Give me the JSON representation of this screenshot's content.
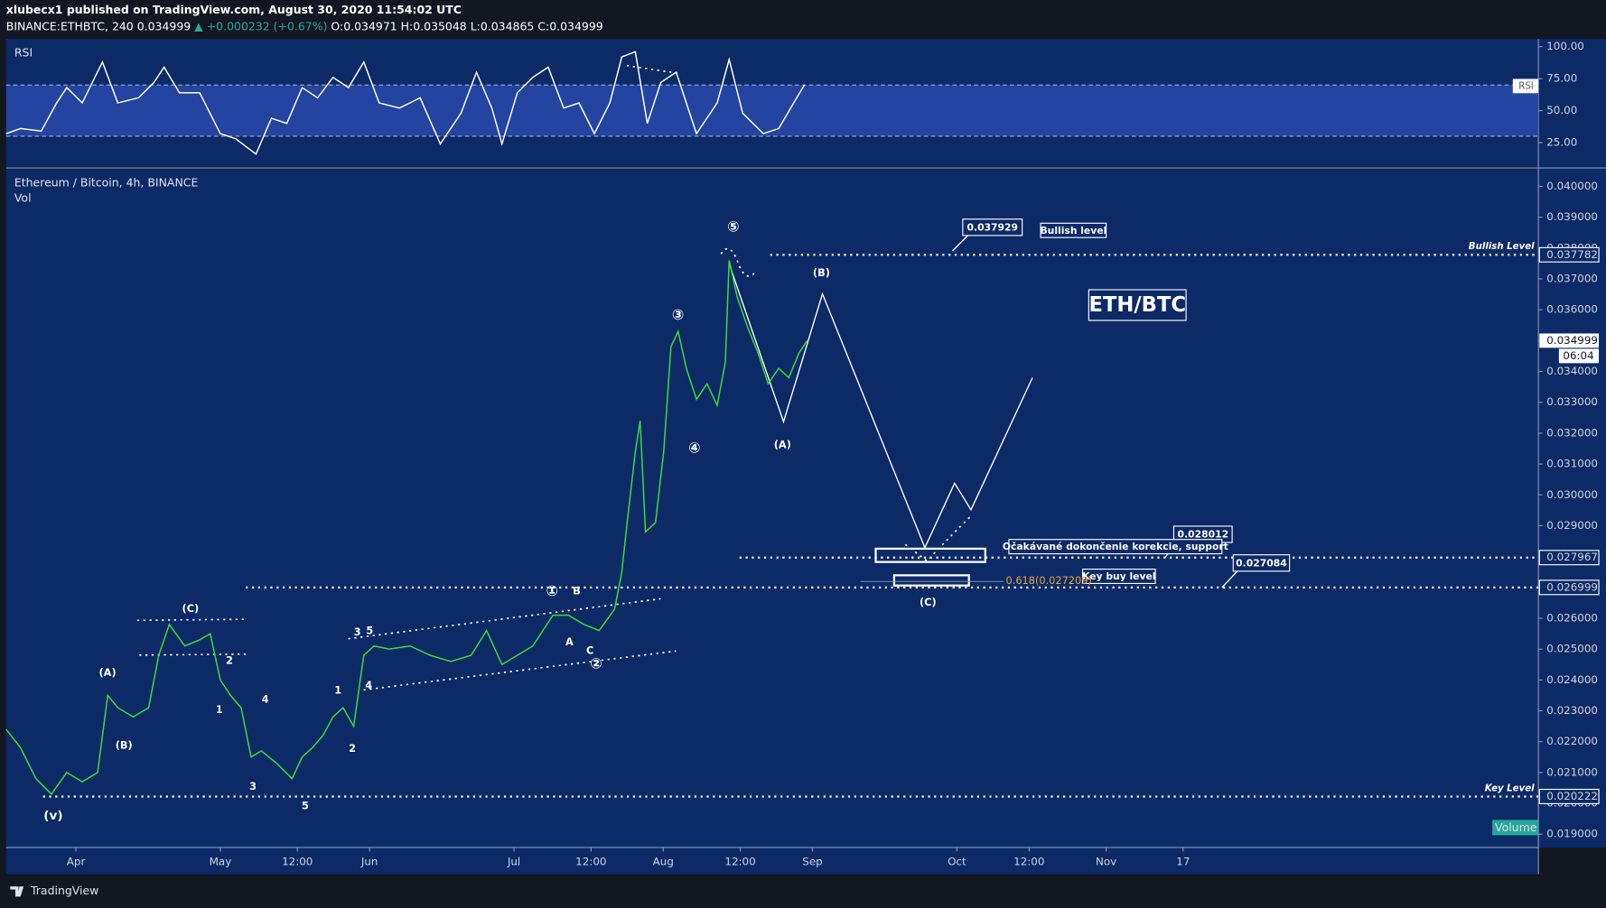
{
  "header": {
    "publisher": "xlubecx1 published on TradingView.com, August 30, 2020 11:54:02 UTC",
    "symbol": "BINANCE:ETHBTC, 240",
    "last": "0.034999",
    "change": "▲ +0.000232 (+0.67%)",
    "ohlc": "O:0.034971 H:0.035048 L:0.034865 C:0.034999"
  },
  "footer": {
    "brand": "TradingView"
  },
  "chart_data": [
    {
      "type": "line",
      "title": "RSI",
      "tag": "RSI",
      "color": "#ffffff",
      "band_color": "#2a4bb0",
      "bands": [
        30,
        70
      ],
      "x": [
        -14.5,
        -11.5,
        -7.2,
        -4.0,
        -1.9,
        1.3,
        5.5,
        8.7,
        13.0,
        16.2,
        18.3,
        21.5,
        25.7,
        30.0,
        33.2,
        37.4,
        40.6,
        43.8,
        47.0,
        50.2,
        53.4,
        56.6,
        59.8,
        63.0,
        67.2,
        71.5,
        75.7,
        80.0,
        83.2,
        86.4,
        88.5,
        91.7,
        94.9,
        98.1,
        101.3,
        104.5,
        107.7,
        110.9,
        113.4,
        116.2,
        118.7,
        121.5,
        124.7,
        128.9,
        133.2,
        135.7,
        138.5,
        142.8,
        146.0,
        149.1,
        151.3
      ],
      "values": [
        32,
        36,
        34,
        56,
        68,
        56,
        88,
        56,
        60,
        72,
        84,
        64,
        64,
        32,
        28,
        16,
        44,
        40,
        68,
        60,
        76,
        68,
        88,
        56,
        52,
        60,
        24,
        48,
        80,
        52,
        24,
        64,
        76,
        84,
        52,
        56,
        32,
        56,
        92,
        96,
        40,
        72,
        80,
        32,
        56,
        90,
        48,
        32,
        36,
        56,
        70
      ],
      "xlim": [
        -14.5,
        303.8
      ],
      "ylim": [
        6,
        106
      ],
      "yticks": [
        {
          "value": 100,
          "label": "100.00"
        },
        {
          "value": 75,
          "label": "75.00"
        },
        {
          "value": 50,
          "label": "50.00"
        },
        {
          "value": 25,
          "label": "25.00"
        }
      ]
    },
    {
      "type": "line",
      "title": "Ethereum / Bitcoin, 4h, BINANCE",
      "subtitle": "Vol",
      "volume_label": "Volume",
      "color": "#3ddc3d",
      "x": [
        -14.5,
        -11.5,
        -8.3,
        -5.1,
        -1.9,
        1.3,
        4.5,
        6.6,
        8.7,
        11.9,
        15.1,
        17.2,
        19.4,
        22.6,
        25.7,
        27.9,
        30.0,
        32.1,
        34.3,
        36.4,
        38.5,
        41.7,
        44.9,
        47.0,
        49.1,
        51.3,
        53.4,
        55.5,
        57.7,
        59.8,
        61.9,
        65.1,
        69.4,
        73.6,
        77.9,
        82.1,
        85.3,
        88.5,
        91.7,
        94.9,
        97.0,
        99.1,
        102.3,
        105.5,
        108.7,
        111.9,
        113.4,
        114.5,
        116.2,
        117.2,
        118.3,
        120.4,
        122.1,
        123.6,
        125.1,
        126.8,
        128.9,
        131.1,
        133.2,
        134.9,
        135.7,
        137.4,
        139.6,
        141.7,
        143.8,
        146.0,
        148.1,
        150.2,
        151.9
      ],
      "values": [
        0.0224,
        0.0218,
        0.0208,
        0.0203,
        0.021,
        0.0207,
        0.021,
        0.0235,
        0.0231,
        0.0228,
        0.0231,
        0.0248,
        0.0258,
        0.0251,
        0.0253,
        0.0255,
        0.024,
        0.0235,
        0.0231,
        0.0215,
        0.0217,
        0.0213,
        0.0208,
        0.0215,
        0.0218,
        0.0222,
        0.0228,
        0.0231,
        0.0225,
        0.0248,
        0.0251,
        0.025,
        0.0251,
        0.0248,
        0.0246,
        0.0248,
        0.0256,
        0.0245,
        0.0248,
        0.0251,
        0.0256,
        0.0261,
        0.0261,
        0.0258,
        0.0256,
        0.0263,
        0.0275,
        0.0291,
        0.0314,
        0.0324,
        0.0288,
        0.0291,
        0.0314,
        0.0348,
        0.0353,
        0.0341,
        0.0331,
        0.0336,
        0.0329,
        0.0343,
        0.0376,
        0.0364,
        0.0354,
        0.0346,
        0.0336,
        0.0341,
        0.0338,
        0.0346,
        0.035
      ],
      "xlim": [
        -14.5,
        303.8
      ],
      "ylim": [
        0.018568,
        0.040564
      ],
      "yticks": [
        {
          "value": 0.04,
          "label": "0.040000"
        },
        {
          "value": 0.039,
          "label": "0.039000"
        },
        {
          "value": 0.038,
          "label": "0.038000"
        },
        {
          "value": 0.037,
          "label": "0.037000"
        },
        {
          "value": 0.036,
          "label": "0.036000"
        },
        {
          "value": 0.035,
          "label": "0.035000"
        },
        {
          "value": 0.034,
          "label": "0.034000"
        },
        {
          "value": 0.033,
          "label": "0.033000"
        },
        {
          "value": 0.032,
          "label": "0.032000"
        },
        {
          "value": 0.031,
          "label": "0.031000"
        },
        {
          "value": 0.03,
          "label": "0.030000"
        },
        {
          "value": 0.029,
          "label": "0.029000"
        },
        {
          "value": 0.028,
          "label": "0.028000"
        },
        {
          "value": 0.027,
          "label": "0.027000"
        },
        {
          "value": 0.026,
          "label": "0.026000"
        },
        {
          "value": 0.025,
          "label": "0.025000"
        },
        {
          "value": 0.024,
          "label": "0.024000"
        },
        {
          "value": 0.023,
          "label": "0.023000"
        },
        {
          "value": 0.022,
          "label": "0.022000"
        },
        {
          "value": 0.021,
          "label": "0.021000"
        },
        {
          "value": 0.02,
          "label": "0.020000"
        },
        {
          "value": 0.019,
          "label": "0.019000"
        }
      ],
      "xticks": [
        {
          "value": 0,
          "label": "Apr"
        },
        {
          "value": 30,
          "label": "May"
        },
        {
          "value": 46,
          "label": "12:00"
        },
        {
          "value": 61,
          "label": "Jun"
        },
        {
          "value": 91,
          "label": "Jul"
        },
        {
          "value": 107,
          "label": "12:00"
        },
        {
          "value": 122,
          "label": "Aug"
        },
        {
          "value": 138,
          "label": "12:00"
        },
        {
          "value": 153,
          "label": "Sep"
        },
        {
          "value": 183,
          "label": "Oct"
        },
        {
          "value": 198,
          "label": "12:00"
        },
        {
          "value": 214,
          "label": "Nov"
        },
        {
          "value": 230,
          "label": "17"
        }
      ],
      "last_price": {
        "value": 0.034999,
        "label": "0.034999",
        "countdown": "06:04"
      },
      "levels": [
        {
          "value": 0.037782,
          "label": "0.037782",
          "title": "Bullish Level"
        },
        {
          "value": 0.027967,
          "label": "0.027967"
        },
        {
          "value": 0.026999,
          "label": "0.026999"
        },
        {
          "value": 0.020222,
          "label": "0.020222",
          "title": "Key Level"
        }
      ],
      "callouts": [
        "0.037929",
        "Bullish level",
        "ETH/BTC",
        "0.028012",
        "Očakávané dokončenie korekcie, support",
        "0.027084",
        "Key buy level"
      ],
      "fib_label": "0.618(0.027209)",
      "waves": [
        "⑤",
        "③",
        "④",
        "①",
        "②",
        "(A)",
        "(B)",
        "(C)",
        "(A)",
        "(B)",
        "(C)",
        "(v)",
        "1",
        "2",
        "3",
        "4",
        "5",
        "1",
        "2",
        "3",
        "5",
        "4",
        "A",
        "B",
        "C"
      ]
    }
  ]
}
